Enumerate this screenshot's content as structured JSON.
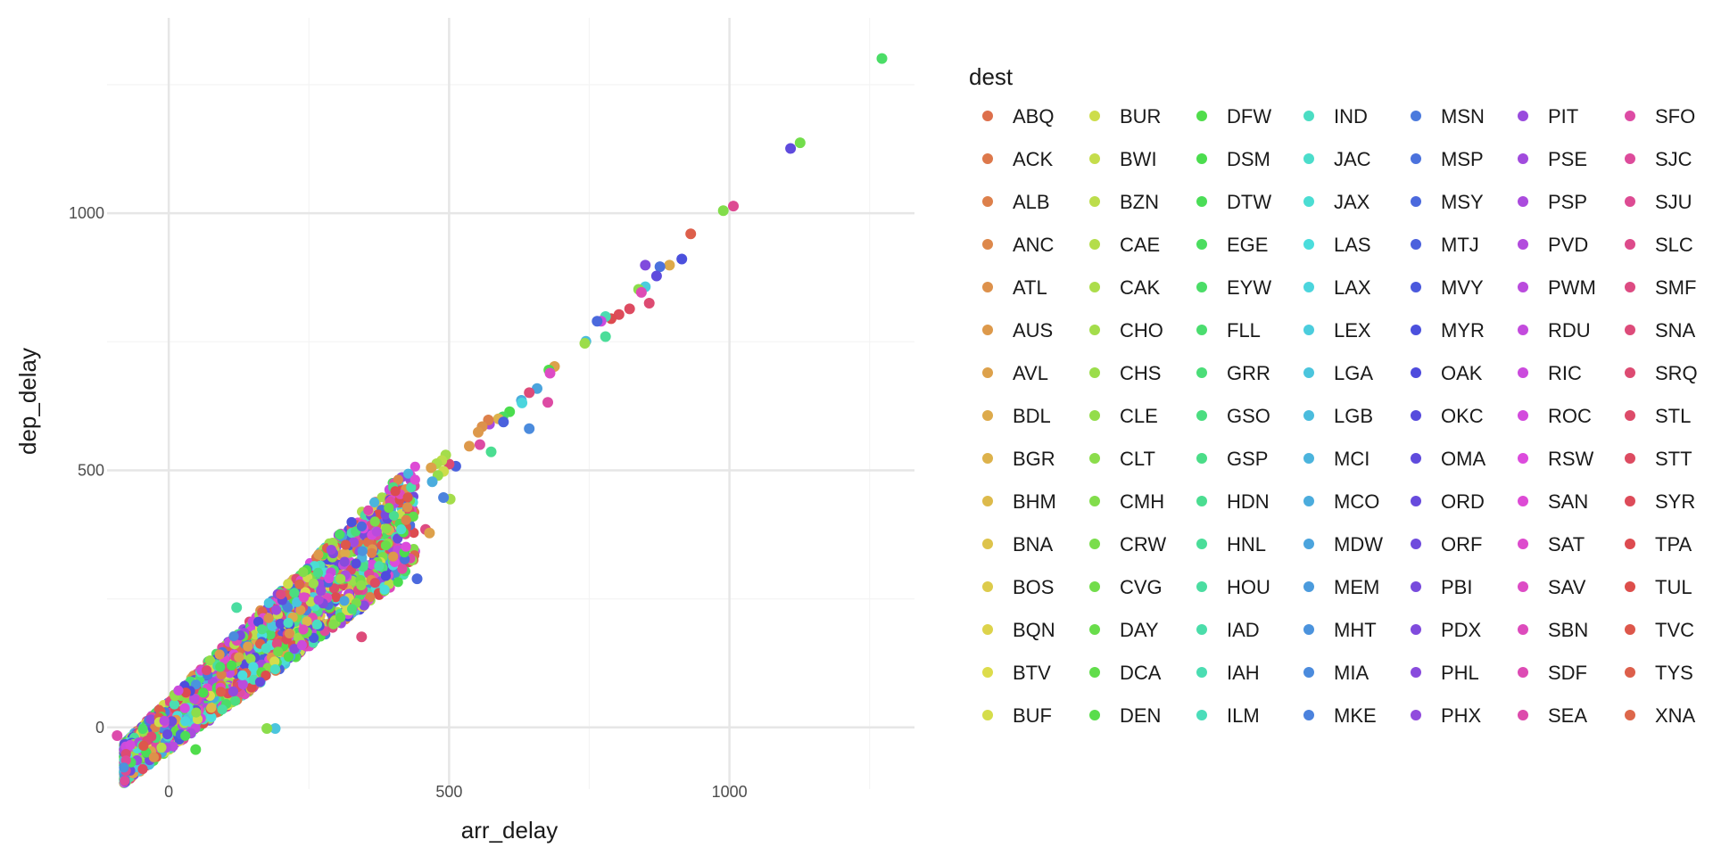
{
  "chart_data": {
    "type": "scatter",
    "xlabel": "arr_delay",
    "ylabel": "dep_delay",
    "xlim": [
      -110,
      1330
    ],
    "ylim": [
      -120,
      1380
    ],
    "x_ticks": [
      0,
      500,
      1000
    ],
    "y_ticks": [
      0,
      500,
      1000
    ],
    "grid": "major and minor",
    "legend": {
      "title": "dest",
      "placement": "right",
      "columns": 7,
      "rows": 15
    },
    "categories": [
      "ABQ",
      "ACK",
      "ALB",
      "ANC",
      "ATL",
      "AUS",
      "AVL",
      "BDL",
      "BGR",
      "BHM",
      "BNA",
      "BOS",
      "BQN",
      "BTV",
      "BUF",
      "BUR",
      "BWI",
      "BZN",
      "CAE",
      "CAK",
      "CHO",
      "CHS",
      "CLE",
      "CLT",
      "CMH",
      "CRW",
      "CVG",
      "DAY",
      "DCA",
      "DEN",
      "DFW",
      "DSM",
      "DTW",
      "EGE",
      "EYW",
      "FLL",
      "GRR",
      "GSO",
      "GSP",
      "HDN",
      "HNL",
      "HOU",
      "IAD",
      "IAH",
      "ILM",
      "IND",
      "JAC",
      "JAX",
      "LAS",
      "LAX",
      "LEX",
      "LGA",
      "LGB",
      "MCI",
      "MCO",
      "MDW",
      "MEM",
      "MHT",
      "MIA",
      "MKE",
      "MSN",
      "MSP",
      "MSY",
      "MTJ",
      "MVY",
      "MYR",
      "OAK",
      "OKC",
      "OMA",
      "ORD",
      "ORF",
      "PBI",
      "PDX",
      "PHL",
      "PHX",
      "PIT",
      "PSE",
      "PSP",
      "PVD",
      "PWM",
      "RDU",
      "RIC",
      "ROC",
      "RSW",
      "SAN",
      "SAT",
      "SAV",
      "SBN",
      "SDF",
      "SEA",
      "SFO",
      "SJC",
      "SJU",
      "SLC",
      "SMF",
      "SNA",
      "SRQ",
      "STL",
      "STT",
      "SYR",
      "TPA",
      "TUL",
      "TVC",
      "TYS",
      "XNA"
    ],
    "points": [
      {
        "x": 1272,
        "y": 1301,
        "dest": "EYW"
      },
      {
        "x": 1126,
        "y": 1137,
        "dest": "CVG"
      },
      {
        "x": 1109,
        "y": 1126,
        "dest": "OMA"
      },
      {
        "x": 1007,
        "y": 1014,
        "dest": "SJU"
      },
      {
        "x": 989,
        "y": 1005,
        "dest": "CMH"
      },
      {
        "x": 931,
        "y": 960,
        "dest": "TYS"
      },
      {
        "x": 915,
        "y": 911,
        "dest": "MYR"
      },
      {
        "x": 893,
        "y": 899,
        "dest": "BDL"
      },
      {
        "x": 876,
        "y": 896,
        "dest": "MSP"
      },
      {
        "x": 850,
        "y": 899,
        "dest": "PDX"
      },
      {
        "x": 870,
        "y": 878,
        "dest": "OMA"
      },
      {
        "x": 850,
        "y": 857,
        "dest": "LEX"
      },
      {
        "x": 838,
        "y": 852,
        "dest": "CLT"
      },
      {
        "x": 843,
        "y": 846,
        "dest": "SDF"
      },
      {
        "x": 857,
        "y": 825,
        "dest": "SRQ"
      },
      {
        "x": 822,
        "y": 814,
        "dest": "STT"
      },
      {
        "x": 803,
        "y": 803,
        "dest": "SYR"
      },
      {
        "x": 789,
        "y": 795,
        "dest": "TPA"
      },
      {
        "x": 779,
        "y": 799,
        "dest": "IAH"
      },
      {
        "x": 771,
        "y": 790,
        "dest": "RIC"
      },
      {
        "x": 764,
        "y": 790,
        "dest": "MSY"
      },
      {
        "x": 779,
        "y": 760,
        "dest": "HNL"
      },
      {
        "x": 744,
        "y": 751,
        "dest": "LGB"
      },
      {
        "x": 742,
        "y": 747,
        "dest": "CHS"
      },
      {
        "x": 688,
        "y": 702,
        "dest": "AVL"
      },
      {
        "x": 678,
        "y": 695,
        "dest": "DFW"
      },
      {
        "x": 680,
        "y": 689,
        "dest": "SAV"
      },
      {
        "x": 676,
        "y": 632,
        "dest": "SFO"
      },
      {
        "x": 657,
        "y": 659,
        "dest": "MDW"
      },
      {
        "x": 643,
        "y": 651,
        "dest": "SNA"
      },
      {
        "x": 629,
        "y": 636,
        "dest": "MCO"
      },
      {
        "x": 630,
        "y": 631,
        "dest": "LAX"
      },
      {
        "x": 643,
        "y": 581,
        "dest": "MIA"
      },
      {
        "x": 608,
        "y": 614,
        "dest": "DSM"
      },
      {
        "x": 596,
        "y": 604,
        "dest": "EGE"
      },
      {
        "x": 588,
        "y": 600,
        "dest": "BGR"
      },
      {
        "x": 597,
        "y": 594,
        "dest": "MTJ"
      },
      {
        "x": 572,
        "y": 590,
        "dest": "PSP"
      },
      {
        "x": 570,
        "y": 598,
        "dest": "ALB"
      },
      {
        "x": 559,
        "y": 585,
        "dest": "ATL"
      },
      {
        "x": 552,
        "y": 574,
        "dest": "AUS"
      },
      {
        "x": 555,
        "y": 550,
        "dest": "SFO"
      },
      {
        "x": 536,
        "y": 547,
        "dest": "AUS"
      },
      {
        "x": 575,
        "y": 536,
        "dest": "HDN"
      },
      {
        "x": 512,
        "y": 508,
        "dest": "MTJ"
      },
      {
        "x": 500,
        "y": 512,
        "dest": "SRQ"
      },
      {
        "x": 494,
        "y": 530,
        "dest": "CHO"
      },
      {
        "x": 487,
        "y": 519,
        "dest": "BZN"
      },
      {
        "x": 478,
        "y": 513,
        "dest": "CAK"
      },
      {
        "x": 468,
        "y": 505,
        "dest": "AVL"
      },
      {
        "x": 490,
        "y": 498,
        "dest": "BUR"
      },
      {
        "x": 480,
        "y": 490,
        "dest": "CLE"
      },
      {
        "x": 470,
        "y": 478,
        "dest": "MCO"
      },
      {
        "x": 502,
        "y": 444,
        "dest": "CHO"
      },
      {
        "x": 490,
        "y": 447,
        "dest": "MKE"
      },
      {
        "x": 458,
        "y": 385,
        "dest": "SMF"
      },
      {
        "x": 465,
        "y": 378,
        "dest": "AVL"
      },
      {
        "x": 443,
        "y": 289,
        "dest": "MSY"
      },
      {
        "x": 344,
        "y": 176,
        "dest": "SNA"
      },
      {
        "x": 121,
        "y": 233,
        "dest": "HOU"
      },
      {
        "x": 190,
        "y": -2,
        "dest": "LGA"
      },
      {
        "x": 175,
        "y": -2,
        "dest": "CLT"
      },
      {
        "x": 48,
        "y": -43,
        "dest": "DFW"
      },
      {
        "x": -92,
        "y": -16,
        "dest": "SEA"
      }
    ]
  }
}
